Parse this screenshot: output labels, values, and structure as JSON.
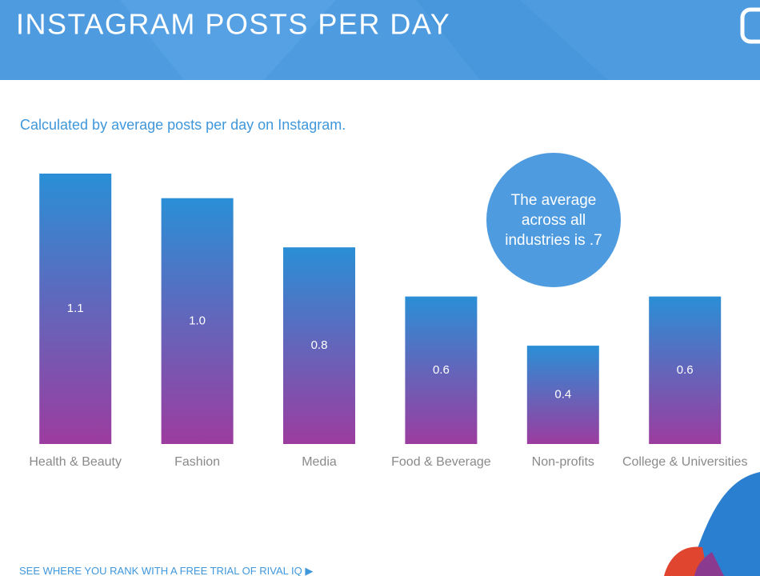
{
  "chart_data": {
    "type": "bar",
    "title": "INSTAGRAM POSTS PER DAY",
    "subtitle": "Calculated by average posts per day on Instagram.",
    "annotation": "The average across all industries is .7",
    "categories": [
      "Health & Beauty",
      "Fashion",
      "Media",
      "Food & Beverage",
      "Non-profits",
      "College & Universities"
    ],
    "values": [
      1.1,
      1.0,
      0.8,
      0.6,
      0.4,
      0.6
    ],
    "value_labels": [
      "1.1",
      "1.0",
      "0.8",
      "0.6",
      "0.4",
      "0.6"
    ],
    "colors": [
      "#2a8fd6",
      "#9c3c9f"
    ]
  },
  "footer": {
    "link": "SEE WHERE YOU RANK WITH A FREE TRIAL OF RIVAL IQ"
  }
}
